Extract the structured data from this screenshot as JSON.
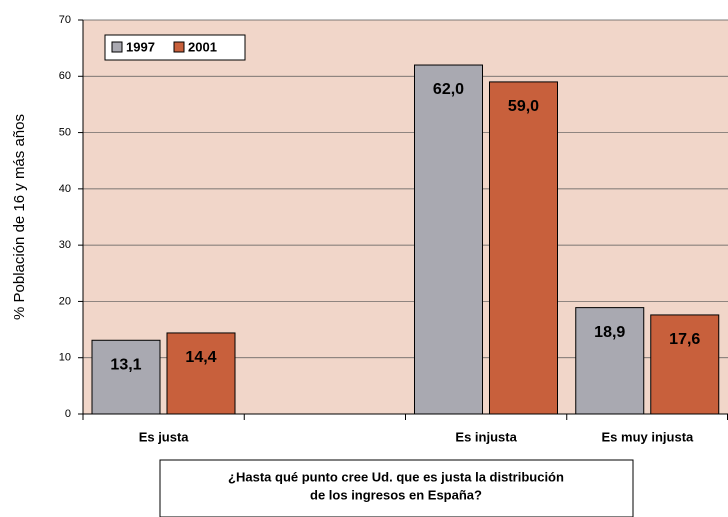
{
  "chart_data": {
    "type": "bar",
    "ylabel": "% Población de 16 y más años",
    "xlabel": [
      "¿Hasta qué punto cree Ud. que es justa la distribución",
      "de los ingresos en España?"
    ],
    "categories": [
      "Es justa",
      null,
      "Es injusta",
      "Es muy injusta"
    ],
    "series": [
      {
        "name": "1997",
        "color": "#a9a9b1",
        "values": [
          13.1,
          null,
          62.0,
          18.9
        ],
        "value_labels": [
          "13,1",
          null,
          "62,0",
          "18,9"
        ]
      },
      {
        "name": "2001",
        "color": "#c8603c",
        "values": [
          14.4,
          null,
          59.0,
          17.6
        ],
        "value_labels": [
          "14,4",
          null,
          "59,0",
          "17,6"
        ]
      }
    ],
    "ylim": [
      0,
      70
    ],
    "yticks": [
      0,
      10,
      20,
      30,
      40,
      50,
      60,
      70
    ],
    "grid": true,
    "legend": "top-left",
    "plot_background": "#f1d6c9"
  }
}
